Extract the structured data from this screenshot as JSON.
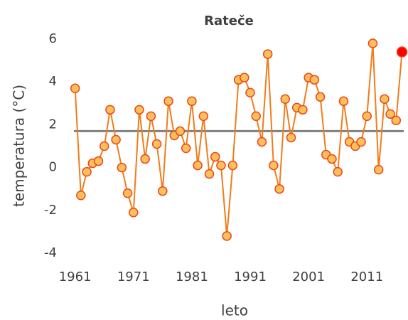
{
  "chart_data": {
    "type": "line",
    "title": "Rateče",
    "x_label": "leto",
    "y_label": "temperatura (°C)",
    "x": [
      1961,
      1962,
      1963,
      1964,
      1965,
      1966,
      1967,
      1968,
      1969,
      1970,
      1971,
      1972,
      1973,
      1974,
      1975,
      1976,
      1977,
      1978,
      1979,
      1980,
      1981,
      1982,
      1983,
      1984,
      1985,
      1986,
      1987,
      1988,
      1989,
      1990,
      1991,
      1992,
      1993,
      1994,
      1995,
      1996,
      1997,
      1998,
      1999,
      2000,
      2001,
      2002,
      2003,
      2004,
      2005,
      2006,
      2007,
      2008,
      2009,
      2010,
      2011,
      2012,
      2013,
      2014,
      2015,
      2016,
      2017
    ],
    "series": [
      {
        "color": "#f07d1a",
        "marker_fill": "#fcbf5a",
        "marker_edge": "#e8491d",
        "highlight_color": "#ff0000",
        "values": [
          3.7,
          -1.3,
          -0.2,
          0.2,
          0.3,
          1.0,
          2.7,
          1.3,
          0.0,
          -1.2,
          -2.1,
          2.7,
          0.4,
          2.4,
          1.1,
          -1.1,
          3.1,
          1.5,
          1.7,
          0.9,
          3.1,
          0.1,
          2.4,
          -0.3,
          0.5,
          0.1,
          -3.2,
          0.1,
          4.1,
          4.2,
          3.5,
          2.4,
          1.2,
          5.3,
          0.1,
          -1.0,
          3.2,
          1.4,
          2.8,
          2.7,
          4.2,
          4.1,
          3.3,
          0.6,
          0.4,
          -0.2,
          3.1,
          1.2,
          1.0,
          1.2,
          2.4,
          5.8,
          -0.1,
          3.2,
          2.5,
          2.2,
          5.4
        ]
      }
    ],
    "mean": 1.7,
    "mean_color": "#808080",
    "xlim": [
      1960.8,
      2017.3
    ],
    "xticks": [
      1961,
      1971,
      1981,
      1991,
      2001,
      2011
    ],
    "ylim": [
      -4,
      6
    ],
    "yticks": [
      -4,
      -2,
      0,
      2,
      4,
      6
    ],
    "grid": false
  }
}
